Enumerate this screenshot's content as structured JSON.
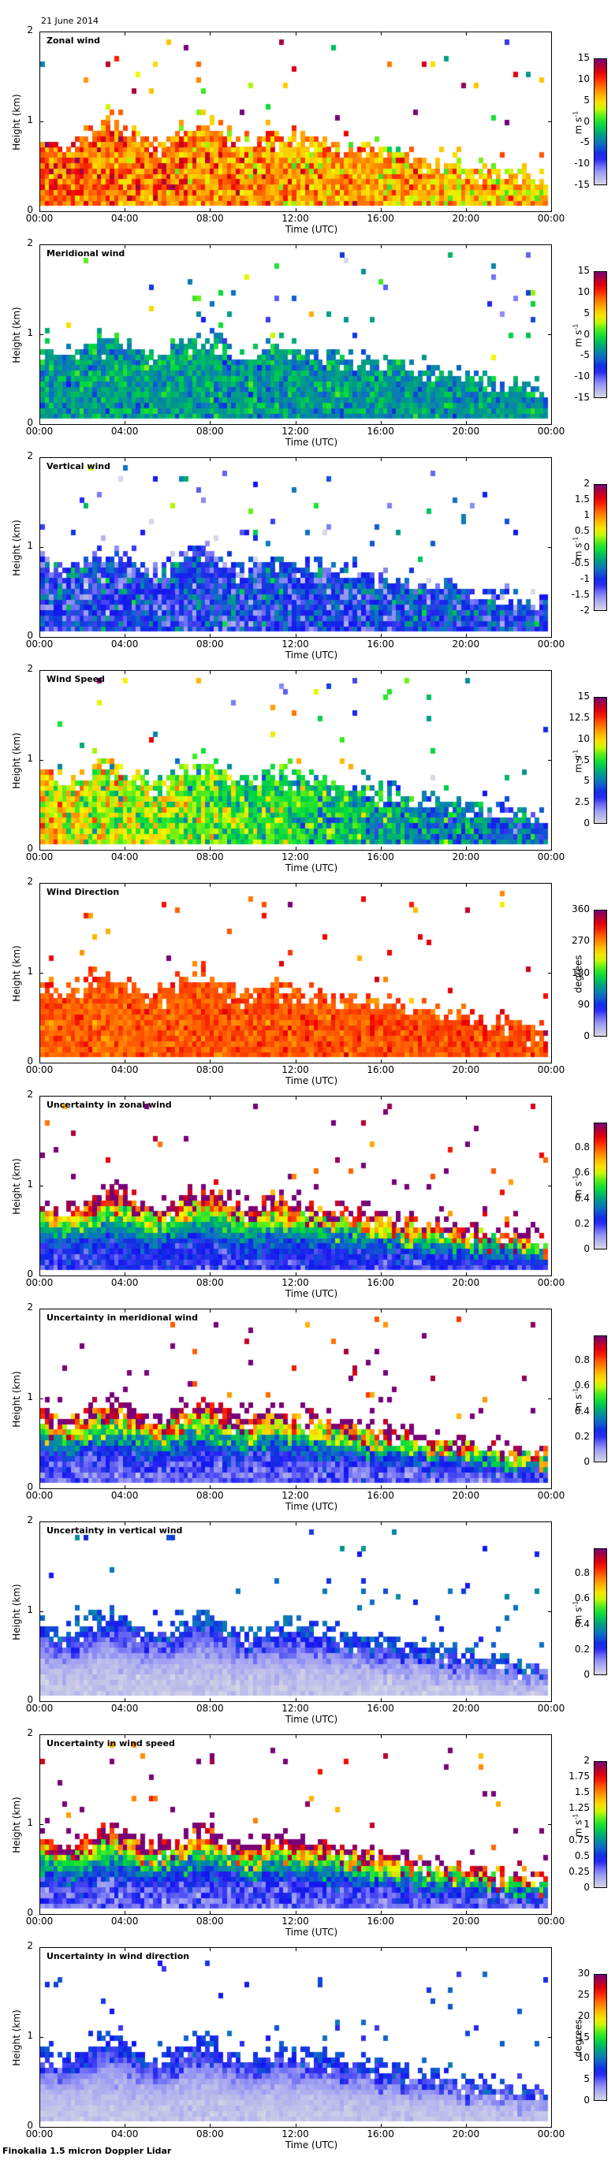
{
  "header": {
    "date": "21 June 2014"
  },
  "footer": {
    "instrument": "Finokalia 1.5 micron Doppler Lidar"
  },
  "chart_data": [
    {
      "type": "heatmap",
      "title": "Zonal wind",
      "xlabel": "Time (UTC)",
      "ylabel": "Height (km)",
      "x_ticks": [
        "00:00",
        "04:00",
        "08:00",
        "12:00",
        "16:00",
        "20:00",
        "00:00"
      ],
      "y_ticks": [
        "0",
        "1",
        "2"
      ],
      "ylim": [
        0,
        2
      ],
      "colorbar": {
        "label": "m s-1",
        "unit": "m s",
        "unit_exp": "-1",
        "range": [
          -15,
          15
        ],
        "ticks": [
          "15",
          "10",
          "5",
          "0",
          "-5",
          "-10",
          "-15"
        ]
      },
      "field": {
        "early_mean": 9,
        "late_mean": 5,
        "spread": 3.5
      }
    },
    {
      "type": "heatmap",
      "title": "Meridional wind",
      "xlabel": "Time (UTC)",
      "ylabel": "Height (km)",
      "x_ticks": [
        "00:00",
        "04:00",
        "08:00",
        "12:00",
        "16:00",
        "20:00",
        "00:00"
      ],
      "y_ticks": [
        "0",
        "1",
        "2"
      ],
      "ylim": [
        0,
        2
      ],
      "colorbar": {
        "label": "m s-1",
        "unit": "m s",
        "unit_exp": "-1",
        "range": [
          -15,
          15
        ],
        "ticks": [
          "15",
          "10",
          "5",
          "0",
          "-5",
          "-10",
          "-15"
        ]
      },
      "field": {
        "early_mean": -3,
        "late_mean": -4,
        "spread": 2.5
      }
    },
    {
      "type": "heatmap",
      "title": "Vertical wind",
      "xlabel": "Time (UTC)",
      "ylabel": "Height (km)",
      "x_ticks": [
        "00:00",
        "04:00",
        "08:00",
        "12:00",
        "16:00",
        "20:00",
        "00:00"
      ],
      "y_ticks": [
        "0",
        "1",
        "2"
      ],
      "ylim": [
        0,
        2
      ],
      "colorbar": {
        "label": "m s-1",
        "unit": "m s",
        "unit_exp": "-1",
        "range": [
          -2,
          2
        ],
        "ticks": [
          "2",
          "1.5",
          "1",
          "0.5",
          "0",
          "-0.5",
          "-1",
          "-1.5",
          "-2"
        ]
      },
      "field": {
        "early_mean": -1.1,
        "late_mean": -0.9,
        "spread": 0.5
      }
    },
    {
      "type": "heatmap",
      "title": "Wind Speed",
      "xlabel": "Time (UTC)",
      "ylabel": "Height (km)",
      "x_ticks": [
        "00:00",
        "04:00",
        "08:00",
        "12:00",
        "16:00",
        "20:00",
        "00:00"
      ],
      "y_ticks": [
        "0",
        "1",
        "2"
      ],
      "ylim": [
        0,
        2
      ],
      "colorbar": {
        "label": "m s-1",
        "unit": "m s",
        "unit_exp": "-1",
        "range": [
          0,
          15
        ],
        "ticks": [
          "15",
          "12.5",
          "10",
          "7.5",
          "5",
          "2.5",
          "0"
        ]
      },
      "field": {
        "early_mean": 10,
        "late_mean": 4,
        "spread": 2
      }
    },
    {
      "type": "heatmap",
      "title": "Wind Direction",
      "xlabel": "Time (UTC)",
      "ylabel": "Height (km)",
      "x_ticks": [
        "00:00",
        "04:00",
        "08:00",
        "12:00",
        "16:00",
        "20:00",
        "00:00"
      ],
      "y_ticks": [
        "0",
        "1",
        "2"
      ],
      "ylim": [
        0,
        2
      ],
      "colorbar": {
        "label": "degrees",
        "unit": "degrees",
        "unit_exp": "",
        "range": [
          0,
          360
        ],
        "ticks": [
          "360",
          "270",
          "180",
          "90",
          "0"
        ]
      },
      "field": {
        "early_mean": 285,
        "late_mean": 295,
        "spread": 18
      }
    },
    {
      "type": "heatmap",
      "title": "Uncertainty in zonal wind",
      "xlabel": "Time (UTC)",
      "ylabel": "Height (km)",
      "x_ticks": [
        "00:00",
        "04:00",
        "08:00",
        "12:00",
        "16:00",
        "20:00",
        "00:00"
      ],
      "y_ticks": [
        "0",
        "1",
        "2"
      ],
      "ylim": [
        0,
        2
      ],
      "colorbar": {
        "label": "m s-1",
        "unit": "m s",
        "unit_exp": "-1",
        "range": [
          0,
          1
        ],
        "ticks": [
          "0.8",
          "0.6",
          "0.4",
          "0.2",
          "0"
        ]
      },
      "field": {
        "kind": "uncertainty",
        "low": 0.2,
        "high": 1.0
      }
    },
    {
      "type": "heatmap",
      "title": "Uncertainty in meridional wind",
      "xlabel": "Time (UTC)",
      "ylabel": "Height (km)",
      "x_ticks": [
        "00:00",
        "04:00",
        "08:00",
        "12:00",
        "16:00",
        "20:00",
        "00:00"
      ],
      "y_ticks": [
        "0",
        "1",
        "2"
      ],
      "ylim": [
        0,
        2
      ],
      "colorbar": {
        "label": "m s-1",
        "unit": "m s",
        "unit_exp": "-1",
        "range": [
          0,
          1
        ],
        "ticks": [
          "0.8",
          "0.6",
          "0.4",
          "0.2",
          "0"
        ]
      },
      "field": {
        "kind": "uncertainty",
        "low": 0.15,
        "high": 1.0
      }
    },
    {
      "type": "heatmap",
      "title": "Uncertainty in vertical wind",
      "xlabel": "Time (UTC)",
      "ylabel": "Height (km)",
      "x_ticks": [
        "00:00",
        "04:00",
        "08:00",
        "12:00",
        "16:00",
        "20:00",
        "00:00"
      ],
      "y_ticks": [
        "0",
        "1",
        "2"
      ],
      "ylim": [
        0,
        2
      ],
      "colorbar": {
        "label": "m s-1",
        "unit": "m s",
        "unit_exp": "-1",
        "range": [
          0,
          1
        ],
        "ticks": [
          "0.8",
          "0.6",
          "0.4",
          "0.2",
          "0"
        ]
      },
      "field": {
        "kind": "uncertainty",
        "low": 0.03,
        "high": 0.3
      }
    },
    {
      "type": "heatmap",
      "title": "Uncertainty in wind speed",
      "xlabel": "Time (UTC)",
      "ylabel": "Height (km)",
      "x_ticks": [
        "00:00",
        "04:00",
        "08:00",
        "12:00",
        "16:00",
        "20:00",
        "00:00"
      ],
      "y_ticks": [
        "0",
        "1",
        "2"
      ],
      "ylim": [
        0,
        2
      ],
      "colorbar": {
        "label": "m s-1",
        "unit": "m s",
        "unit_exp": "-1",
        "range": [
          0,
          2
        ],
        "ticks": [
          "2",
          "1.75",
          "1.5",
          "1.25",
          "1",
          "0.75",
          "0.5",
          "0.25",
          "0"
        ]
      },
      "field": {
        "kind": "uncertainty",
        "low": 0.3,
        "high": 2.0
      }
    },
    {
      "type": "heatmap",
      "title": "Uncertainty in wind direction",
      "xlabel": "Time (UTC)",
      "ylabel": "Height (km)",
      "x_ticks": [
        "00:00",
        "04:00",
        "08:00",
        "12:00",
        "16:00",
        "20:00",
        "00:00"
      ],
      "y_ticks": [
        "0",
        "1",
        "2"
      ],
      "ylim": [
        0,
        2
      ],
      "colorbar": {
        "label": "degrees",
        "unit": "degrees",
        "unit_exp": "",
        "range": [
          0,
          30
        ],
        "ticks": [
          "30",
          "25",
          "20",
          "15",
          "10",
          "5",
          "0"
        ]
      },
      "field": {
        "kind": "uncertainty",
        "low": 1,
        "high": 8
      }
    }
  ]
}
